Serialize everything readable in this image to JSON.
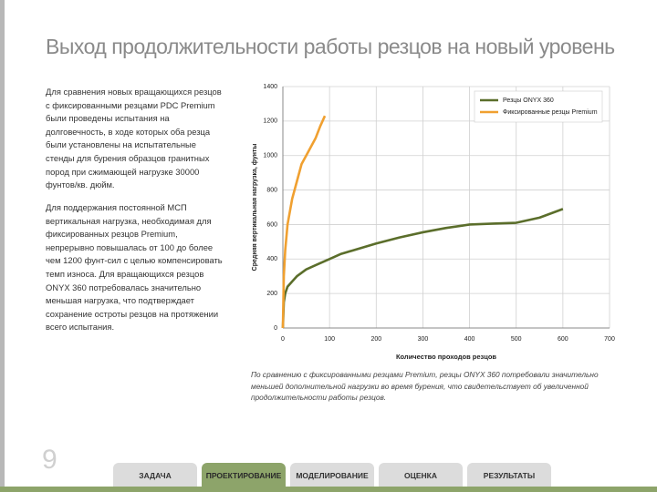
{
  "header": {
    "title": "Выход продолжительности работы резцов на новый уровень"
  },
  "body": {
    "paragraphs": [
      "Для сравнения новых вращающихся резцов с фиксированными резцами PDC Premium были проведены испытания на долговечность, в ходе которых оба резца были установлены на испытательные стенды для бурения образцов гранитных пород при сжимающей нагрузке 30000 фунтов/кв. дюйм.",
      "Для поддержания постоянной МСП вертикальная нагрузка, необходимая для фиксированных резцов Premium, непрерывно повышалась от 100 до более чем 1200 фунт-сил с целью компенсировать темп износа. Для вращающихся резцов ONYX 360 потребовалась значительно меньшая нагрузка, что подтверждает сохранение остроты резцов на протяжении всего испытания."
    ]
  },
  "chart_data": {
    "type": "line",
    "x_label": "Количество проходов резцов",
    "y_label": "Средняя вертикальная нагрузка, фунты",
    "caption": "По сравнению с фиксированными резцами Premium, резцы ONYX 360 потребовали значительно меньшей дополнительной нагрузки во время бурения, что свидетельствует об увеличенной продолжительности работы резцов.",
    "xlim": [
      0,
      700
    ],
    "xticks": [
      0,
      100,
      200,
      300,
      400,
      500,
      600,
      700
    ],
    "ylim": [
      0,
      1400
    ],
    "yticks": [
      0,
      200,
      400,
      600,
      800,
      1000,
      1200,
      1400
    ],
    "grid": true,
    "legend": "upper right",
    "series": [
      {
        "name": "Резцы ONYX 360",
        "color": "#5b6e2b",
        "x": [
          0,
          2,
          5,
          10,
          20,
          30,
          50,
          75,
          100,
          125,
          150,
          200,
          250,
          300,
          350,
          400,
          450,
          500,
          550,
          600
        ],
        "values": [
          0,
          150,
          200,
          240,
          270,
          300,
          340,
          370,
          400,
          430,
          450,
          490,
          525,
          555,
          580,
          600,
          605,
          610,
          640,
          690
        ]
      },
      {
        "name": "Фиксированные резцы Premium",
        "color": "#f0a030",
        "x": [
          0,
          2,
          5,
          10,
          20,
          30,
          40,
          50,
          60,
          70,
          80,
          90
        ],
        "values": [
          0,
          300,
          450,
          600,
          750,
          850,
          950,
          1000,
          1050,
          1100,
          1170,
          1230
        ]
      }
    ]
  },
  "nav": {
    "tabs": [
      "ЗАДАЧА",
      "ПРОЕКТИРОВАНИЕ",
      "МОДЕЛИРОВАНИЕ",
      "ОЦЕНКА",
      "РЕЗУЛЬТАТЫ"
    ],
    "active_tab": 1
  },
  "page_number": 9
}
